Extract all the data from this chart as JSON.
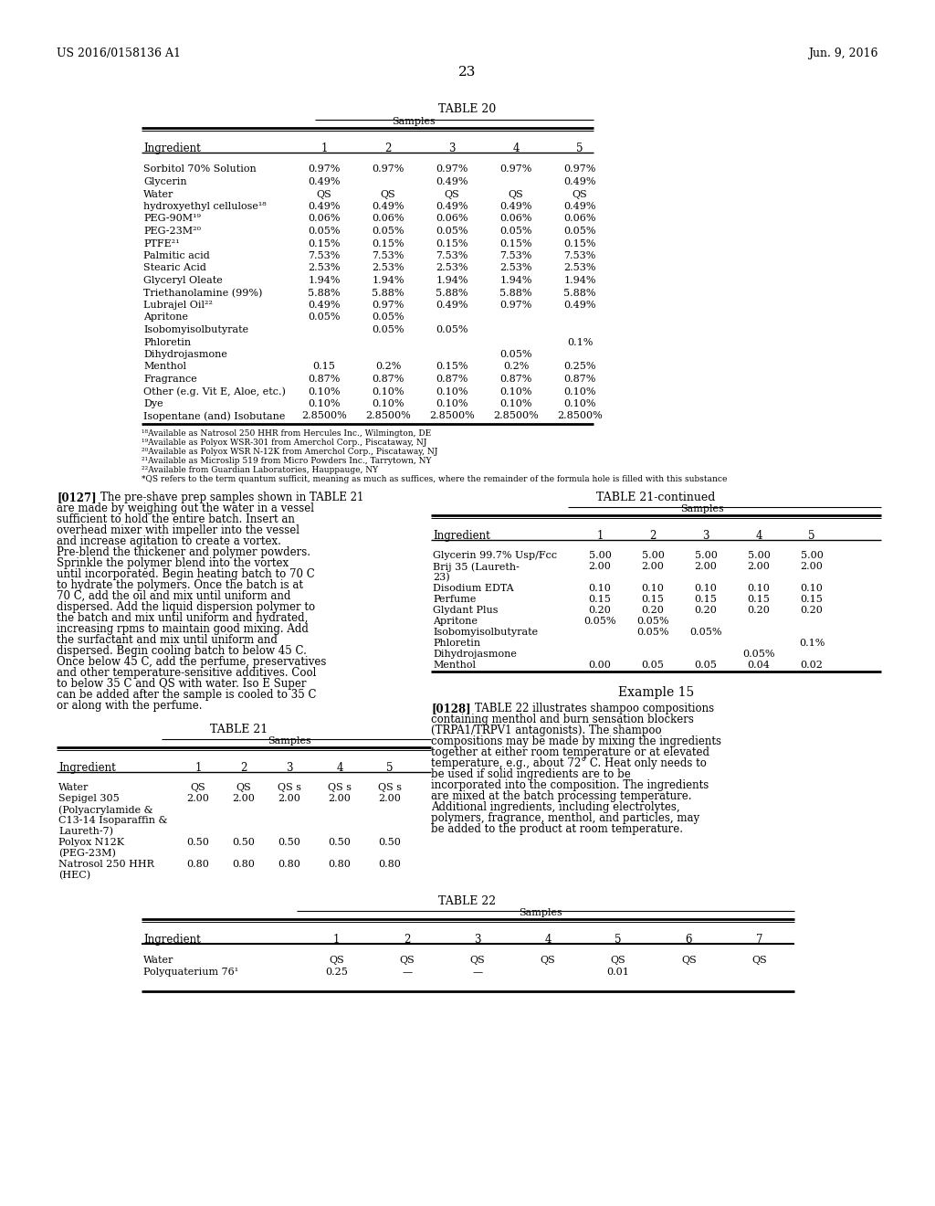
{
  "background_color": "#ffffff",
  "header_left": "US 2016/0158136 A1",
  "header_right": "Jun. 9, 2016",
  "page_number": "23",
  "table20_title": "TABLE 20",
  "table20_rows": [
    [
      "Sorbitol 70% Solution",
      "0.97%",
      "0.97%",
      "0.97%",
      "0.97%",
      "0.97%"
    ],
    [
      "Glycerin",
      "0.49%",
      "",
      "0.49%",
      "",
      "0.49%"
    ],
    [
      "Water",
      "QS",
      "QS",
      "QS",
      "QS",
      "QS"
    ],
    [
      "hydroxyethyl cellulose¹⁸",
      "0.49%",
      "0.49%",
      "0.49%",
      "0.49%",
      "0.49%"
    ],
    [
      "PEG-90M¹⁹",
      "0.06%",
      "0.06%",
      "0.06%",
      "0.06%",
      "0.06%"
    ],
    [
      "PEG-23M²⁰",
      "0.05%",
      "0.05%",
      "0.05%",
      "0.05%",
      "0.05%"
    ],
    [
      "PTFE²¹",
      "0.15%",
      "0.15%",
      "0.15%",
      "0.15%",
      "0.15%"
    ],
    [
      "Palmitic acid",
      "7.53%",
      "7.53%",
      "7.53%",
      "7.53%",
      "7.53%"
    ],
    [
      "Stearic Acid",
      "2.53%",
      "2.53%",
      "2.53%",
      "2.53%",
      "2.53%"
    ],
    [
      "Glyceryl Oleate",
      "1.94%",
      "1.94%",
      "1.94%",
      "1.94%",
      "1.94%"
    ],
    [
      "Triethanolamine (99%)",
      "5.88%",
      "5.88%",
      "5.88%",
      "5.88%",
      "5.88%"
    ],
    [
      "Lubrajel Oil²²",
      "0.49%",
      "0.97%",
      "0.49%",
      "0.97%",
      "0.49%"
    ],
    [
      "Apritone",
      "0.05%",
      "0.05%",
      "",
      "",
      ""
    ],
    [
      "Isobomyisolbutyrate",
      "",
      "0.05%",
      "0.05%",
      "",
      ""
    ],
    [
      "Phloretin",
      "",
      "",
      "",
      "",
      "0.1%"
    ],
    [
      "Dihydrojasmone",
      "",
      "",
      "",
      "0.05%",
      ""
    ],
    [
      "Menthol",
      "0.15",
      "0.2%",
      "0.15%",
      "0.2%",
      "0.25%"
    ],
    [
      "Fragrance",
      "0.87%",
      "0.87%",
      "0.87%",
      "0.87%",
      "0.87%"
    ],
    [
      "Other (e.g. Vit E, Aloe, etc.)",
      "0.10%",
      "0.10%",
      "0.10%",
      "0.10%",
      "0.10%"
    ],
    [
      "Dye",
      "0.10%",
      "0.10%",
      "0.10%",
      "0.10%",
      "0.10%"
    ],
    [
      "Isopentane (and) Isobutane",
      "2.8500%",
      "2.8500%",
      "2.8500%",
      "2.8500%",
      "2.8500%"
    ]
  ],
  "table20_footnotes": [
    "¹⁸Available as Natrosol 250 HHR from Hercules Inc., Wilmington, DE",
    "¹⁹Available as Polyox WSR-301 from Amerchol Corp., Piscataway, NJ",
    "²⁰Available as Polyox WSR N-12K from Amerchol Corp., Piscataway, NJ",
    "²¹Available as Microslip 519 from Micro Powders Inc., Tarrytown, NY",
    "²²Available from Guardian Laboratories, Hauppauge, NY",
    "*QS refers to the term quantum sufficit, meaning as much as suffices, where the remainder of the formula hole is filled with this substance"
  ],
  "paragraph_0127_text": "The pre-shave prep samples shown in TABLE 21 are made by weighing out the water in a vessel sufficient to hold the entire batch. Insert an overhead mixer with impeller into the vessel and increase agitation to create a vortex. Pre-blend the thickener and polymer powders. Sprinkle the polymer blend into the vortex until incorporated. Begin heating batch to 70 C to hydrate the polymers. Once the batch is at 70 C, add the oil and mix until uniform and dispersed. Add the liquid dispersion polymer to the batch and mix until uniform and hydrated, increasing rpms to maintain good mixing. Add the surfactant and mix until uniform and dispersed. Begin cooling batch to below 45 C. Once below 45 C, add the perfume, preservatives and other temperature-sensitive additives. Cool to below 35 C and QS with water. Iso E Super can be added after the sample is cooled to 35 C or along with the perfume.",
  "table21_rows": [
    [
      "Water",
      "QS",
      "QS",
      "QS s",
      "QS s",
      "QS s"
    ],
    [
      "Sepigel 305",
      "2.00",
      "2.00",
      "2.00",
      "2.00",
      "2.00"
    ],
    [
      "(Polyacrylamide &",
      "",
      "",
      "",
      "",
      ""
    ],
    [
      "C13-14 Isoparaffin &",
      "",
      "",
      "",
      "",
      ""
    ],
    [
      "Laureth-7)",
      "",
      "",
      "",
      "",
      ""
    ],
    [
      "Polyox N12K",
      "0.50",
      "0.50",
      "0.50",
      "0.50",
      "0.50"
    ],
    [
      "(PEG-23M)",
      "",
      "",
      "",
      "",
      ""
    ],
    [
      "Natrosol 250 HHR",
      "0.80",
      "0.80",
      "0.80",
      "0.80",
      "0.80"
    ],
    [
      "(HEC)",
      "",
      "",
      "",
      "",
      ""
    ]
  ],
  "table21cont_rows": [
    [
      "Glycerin 99.7% Usp/Fcc",
      "5.00",
      "5.00",
      "5.00",
      "5.00",
      "5.00"
    ],
    [
      "Brij 35 (Laureth-",
      "2.00",
      "2.00",
      "2.00",
      "2.00",
      "2.00"
    ],
    [
      "23)",
      "",
      "",
      "",
      "",
      ""
    ],
    [
      "Disodium EDTA",
      "0.10",
      "0.10",
      "0.10",
      "0.10",
      "0.10"
    ],
    [
      "Perfume",
      "0.15",
      "0.15",
      "0.15",
      "0.15",
      "0.15"
    ],
    [
      "Glydant Plus",
      "0.20",
      "0.20",
      "0.20",
      "0.20",
      "0.20"
    ],
    [
      "Apritone",
      "0.05%",
      "0.05%",
      "",
      "",
      ""
    ],
    [
      "Isobomyisolbutyrate",
      "",
      "0.05%",
      "0.05%",
      "",
      ""
    ],
    [
      "Phloretin",
      "",
      "",
      "",
      "",
      "0.1%"
    ],
    [
      "Dihydrojasmone",
      "",
      "",
      "",
      "0.05%",
      ""
    ],
    [
      "Menthol",
      "0.00",
      "0.05",
      "0.05",
      "0.04",
      "0.02"
    ]
  ],
  "paragraph_0128_text": "TABLE 22 illustrates shampoo compositions containing menthol and burn sensation blockers (TRPA1/TRPV1 antagonists). The shampoo compositions may be made by mixing the ingredients together at either room temperature or at elevated temperature, e.g., about 72° C. Heat only needs to be used if solid ingredients are to be incorporated into the composition. The ingredients are mixed at the batch processing temperature. Additional ingredients, including electrolytes, polymers, fragrance, menthol, and particles, may be added to the product at room temperature.",
  "table22_rows": [
    [
      "Water",
      "QS",
      "QS",
      "QS",
      "QS",
      "QS",
      "QS",
      "QS"
    ],
    [
      "Polyquaterium 76¹",
      "0.25",
      "—",
      "—",
      "",
      "0.01",
      "",
      ""
    ]
  ]
}
